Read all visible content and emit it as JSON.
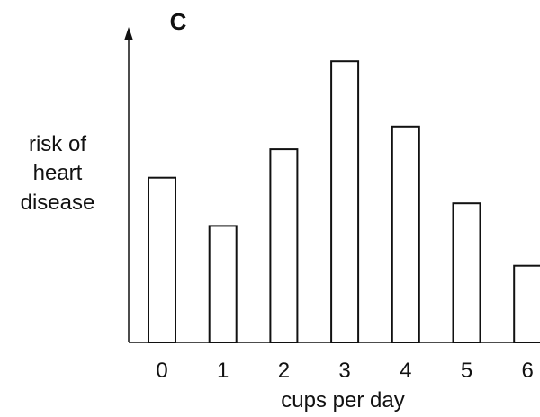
{
  "chart_data": {
    "type": "bar",
    "title": "C",
    "xlabel": "cups per day",
    "ylabel": [
      "risk of",
      "heart",
      "disease"
    ],
    "categories": [
      "0",
      "1",
      "2",
      "3",
      "4",
      "5",
      "6"
    ],
    "values": [
      58,
      41,
      68,
      99,
      76,
      49,
      27
    ],
    "ylim": [
      0,
      100
    ],
    "grid": false,
    "y_ticks_shown": false,
    "bar_fill": "#ffffff",
    "bar_stroke": "#111111",
    "axis_color": "#111111"
  }
}
